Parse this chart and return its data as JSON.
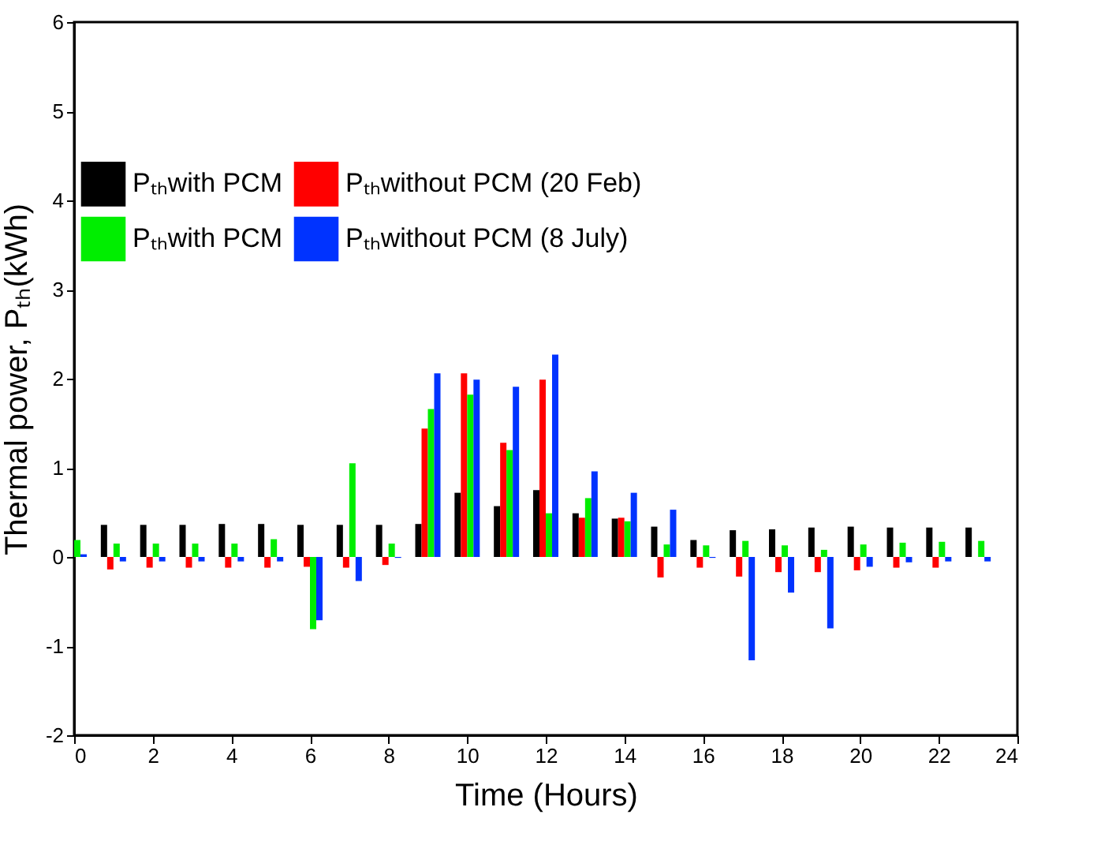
{
  "chart_data": {
    "type": "bar",
    "xlabel": "Time (Hours)",
    "ylabel": "Thermal power, Pₜₕ(kWh)",
    "x": [
      0,
      1,
      2,
      3,
      4,
      5,
      6,
      7,
      8,
      9,
      10,
      11,
      12,
      13,
      14,
      15,
      16,
      17,
      18,
      19,
      20,
      21,
      22,
      23
    ],
    "series": [
      {
        "name": "Pₜₕwith PCM",
        "color": "#000000",
        "values": [
          null,
          0.36,
          0.36,
          0.36,
          0.37,
          0.37,
          0.36,
          0.36,
          0.36,
          0.37,
          0.72,
          0.57,
          0.75,
          0.49,
          0.43,
          0.34,
          0.19,
          0.3,
          0.31,
          0.33,
          0.34,
          0.33,
          0.33,
          0.33
        ]
      },
      {
        "name": "Pₜₕwithout PCM (20 Feb)",
        "color": "#ff0000",
        "values": [
          null,
          -0.14,
          -0.12,
          -0.12,
          -0.12,
          -0.12,
          -0.11,
          -0.12,
          -0.09,
          1.44,
          2.06,
          1.28,
          1.99,
          0.44,
          0.44,
          -0.23,
          -0.12,
          -0.22,
          -0.17,
          -0.17,
          -0.15,
          -0.12,
          -0.12,
          null
        ]
      },
      {
        "name": "Pₜₕwith PCM",
        "color": "#00ee00",
        "values": [
          0.19,
          0.15,
          0.15,
          0.15,
          0.15,
          0.2,
          -0.81,
          1.05,
          0.15,
          1.66,
          1.82,
          1.2,
          0.49,
          0.66,
          0.4,
          0.14,
          0.13,
          0.18,
          0.13,
          0.08,
          0.14,
          0.16,
          0.17,
          0.18
        ]
      },
      {
        "name": "Pₜₕwithout PCM (8 July)",
        "color": "#0033ff",
        "values": [
          0.03,
          -0.05,
          -0.05,
          -0.05,
          -0.05,
          -0.05,
          -0.71,
          -0.27,
          -0.01,
          2.06,
          1.99,
          1.91,
          2.27,
          0.96,
          0.72,
          0.53,
          -0.01,
          -1.16,
          -0.4,
          -0.8,
          -0.11,
          -0.06,
          -0.05,
          -0.05
        ]
      }
    ],
    "xlim": [
      0,
      24
    ],
    "xticks": [
      0,
      2,
      4,
      6,
      8,
      10,
      12,
      14,
      16,
      18,
      20,
      22,
      24
    ],
    "ylim": [
      -2,
      6
    ],
    "yticks": [
      {
        "value": -2,
        "label": "-2"
      },
      {
        "value": -1,
        "label": "-1"
      },
      {
        "value": 0,
        "label": "0"
      },
      {
        "value": 1,
        "label": "1"
      },
      {
        "value": 2,
        "label": "2"
      },
      {
        "value": 3,
        "label": "3"
      },
      {
        "value": 4,
        "label": "4"
      },
      {
        "value": 5,
        "label": "5"
      },
      {
        "value": 6,
        "label": "6"
      }
    ],
    "grid": false,
    "legend": "top left"
  }
}
